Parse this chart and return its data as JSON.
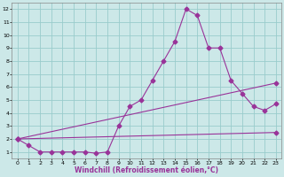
{
  "xlabel": "Windchill (Refroidissement éolien,°C)",
  "bg_color": "#cce8e8",
  "grid_color": "#99cccc",
  "line_color": "#993399",
  "xlim": [
    -0.5,
    23.5
  ],
  "ylim": [
    0.5,
    12.5
  ],
  "xticks": [
    0,
    1,
    2,
    3,
    4,
    5,
    6,
    7,
    8,
    9,
    10,
    11,
    12,
    13,
    14,
    15,
    16,
    17,
    18,
    19,
    20,
    21,
    22,
    23
  ],
  "yticks": [
    1,
    2,
    3,
    4,
    5,
    6,
    7,
    8,
    9,
    10,
    11,
    12
  ],
  "line1_x": [
    0,
    1,
    2,
    3,
    4,
    5,
    6,
    7,
    8,
    9,
    10,
    11,
    12,
    13,
    14,
    15,
    16,
    17,
    18,
    19,
    20,
    21,
    22,
    23
  ],
  "line1_y": [
    2.0,
    1.5,
    1.0,
    1.0,
    1.0,
    1.0,
    1.0,
    0.9,
    1.0,
    3.0,
    4.5,
    5.0,
    6.5,
    8.0,
    9.5,
    12.0,
    11.5,
    9.0,
    9.0,
    6.5,
    5.5,
    4.5,
    4.2,
    4.7
  ],
  "line2_x": [
    0,
    23
  ],
  "line2_y": [
    2.0,
    2.5
  ],
  "line3_x": [
    0,
    23
  ],
  "line3_y": [
    2.0,
    6.3
  ],
  "marker": "D",
  "markersize": 2.5,
  "linewidth": 0.8,
  "tick_fontsize": 4.5,
  "xlabel_fontsize": 5.5
}
